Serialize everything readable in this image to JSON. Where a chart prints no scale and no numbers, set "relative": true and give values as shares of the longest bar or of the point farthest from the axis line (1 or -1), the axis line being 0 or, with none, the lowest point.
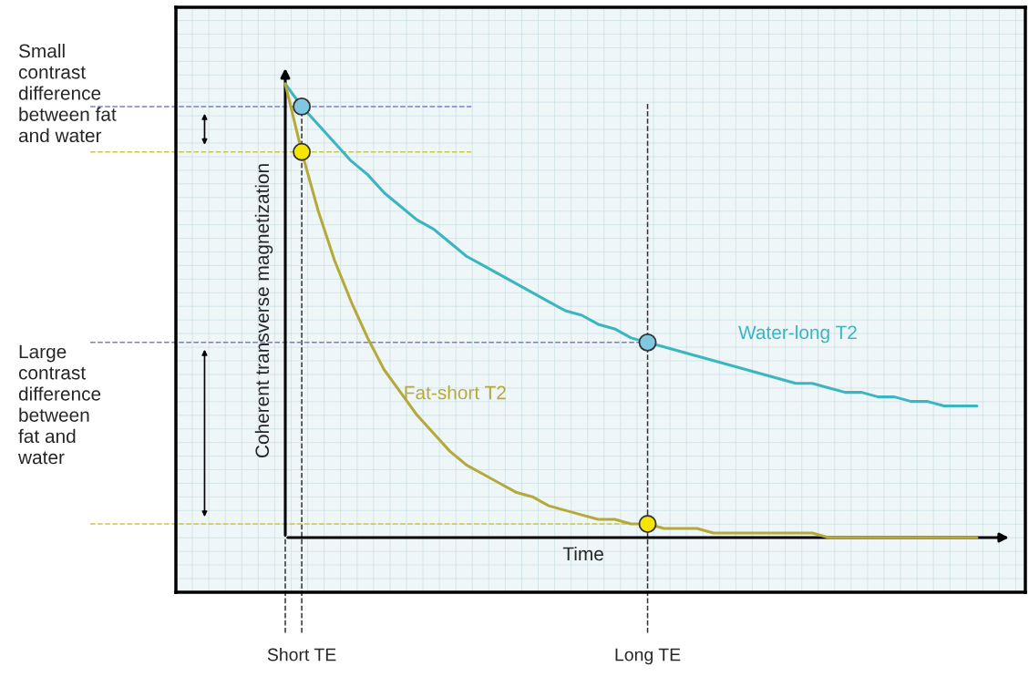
{
  "chart_data": {
    "type": "line",
    "relative": true,
    "xlabel": "Time",
    "ylabel": "Coherent transverse magnetization",
    "grid": true,
    "legend": false,
    "marker": "none",
    "line_style": "solid",
    "categories": [
      null,
      "Short TE",
      null,
      null,
      null,
      null,
      null,
      null,
      null,
      null,
      null,
      null,
      null,
      null,
      null,
      null,
      null,
      null,
      null,
      null,
      null,
      null,
      "Long TE",
      null,
      null,
      null,
      null,
      null,
      null,
      null,
      null,
      null,
      null,
      null,
      null,
      null,
      null,
      null,
      null,
      null,
      null,
      null,
      null
    ],
    "series": [
      {
        "name": "Water-long T2",
        "color": "#3bb5bf",
        "values": [
          1.0,
          0.95,
          0.91,
          0.87,
          0.83,
          0.8,
          0.76,
          0.73,
          0.7,
          0.68,
          0.65,
          0.62,
          0.6,
          0.58,
          0.56,
          0.54,
          0.52,
          0.5,
          0.49,
          0.47,
          0.46,
          0.44,
          0.43,
          0.42,
          0.41,
          0.4,
          0.39,
          0.38,
          0.37,
          0.36,
          0.35,
          0.34,
          0.34,
          0.33,
          0.32,
          0.32,
          0.31,
          0.31,
          0.3,
          0.3,
          0.29,
          0.29,
          0.29
        ]
      },
      {
        "name": "Fat-short T2",
        "color": "#b5a93a",
        "values": [
          1.0,
          0.85,
          0.72,
          0.61,
          0.52,
          0.44,
          0.37,
          0.32,
          0.27,
          0.23,
          0.19,
          0.16,
          0.14,
          0.12,
          0.1,
          0.09,
          0.07,
          0.06,
          0.05,
          0.04,
          0.04,
          0.03,
          0.03,
          0.02,
          0.02,
          0.02,
          0.01,
          0.01,
          0.01,
          0.01,
          0.01,
          0.01,
          0.01,
          0.0,
          0.0,
          0.0,
          0.0,
          0.0,
          0.0,
          0.0,
          0.0,
          0.0,
          0.0
        ]
      },
      {
        "type": "scatter",
        "marker": "circle",
        "color": "#7fc8e0",
        "values": [
          null,
          0.95,
          null,
          null,
          null,
          null,
          null,
          null,
          null,
          null,
          null,
          null,
          null,
          null,
          null,
          null,
          null,
          null,
          null,
          null,
          null,
          null,
          0.43,
          null,
          null,
          null,
          null,
          null,
          null,
          null,
          null,
          null,
          null,
          null,
          null,
          null,
          null,
          null,
          null,
          null,
          null,
          null,
          null
        ]
      },
      {
        "type": "scatter",
        "marker": "circle",
        "color": "#f5e500",
        "values": [
          null,
          0.85,
          null,
          null,
          null,
          null,
          null,
          null,
          null,
          null,
          null,
          null,
          null,
          null,
          null,
          null,
          null,
          null,
          null,
          null,
          null,
          null,
          0.03,
          null,
          null,
          null,
          null,
          null,
          null,
          null,
          null,
          null,
          null,
          null,
          null,
          null,
          null,
          null,
          null,
          null,
          null,
          null,
          null
        ]
      }
    ],
    "ref_lines": [
      {
        "axis": "y",
        "value": 0.95,
        "color": "#7b7fc4",
        "line_style": "dashed"
      },
      {
        "axis": "y",
        "value": 0.85,
        "color": "#c8c84a",
        "line_style": "dashed"
      },
      {
        "axis": "y",
        "value": 0.43,
        "color": "#7b7fc4",
        "line_style": "dashed"
      },
      {
        "axis": "y",
        "value": 0.03,
        "color": "#c8c84a",
        "line_style": "dashed"
      }
    ],
    "annotations": [
      "Small\ncontrast\ndifference\nbetween fat\nand water",
      "Large\ncontrast\ndifference\nbetween\nfat and\nwater"
    ]
  }
}
